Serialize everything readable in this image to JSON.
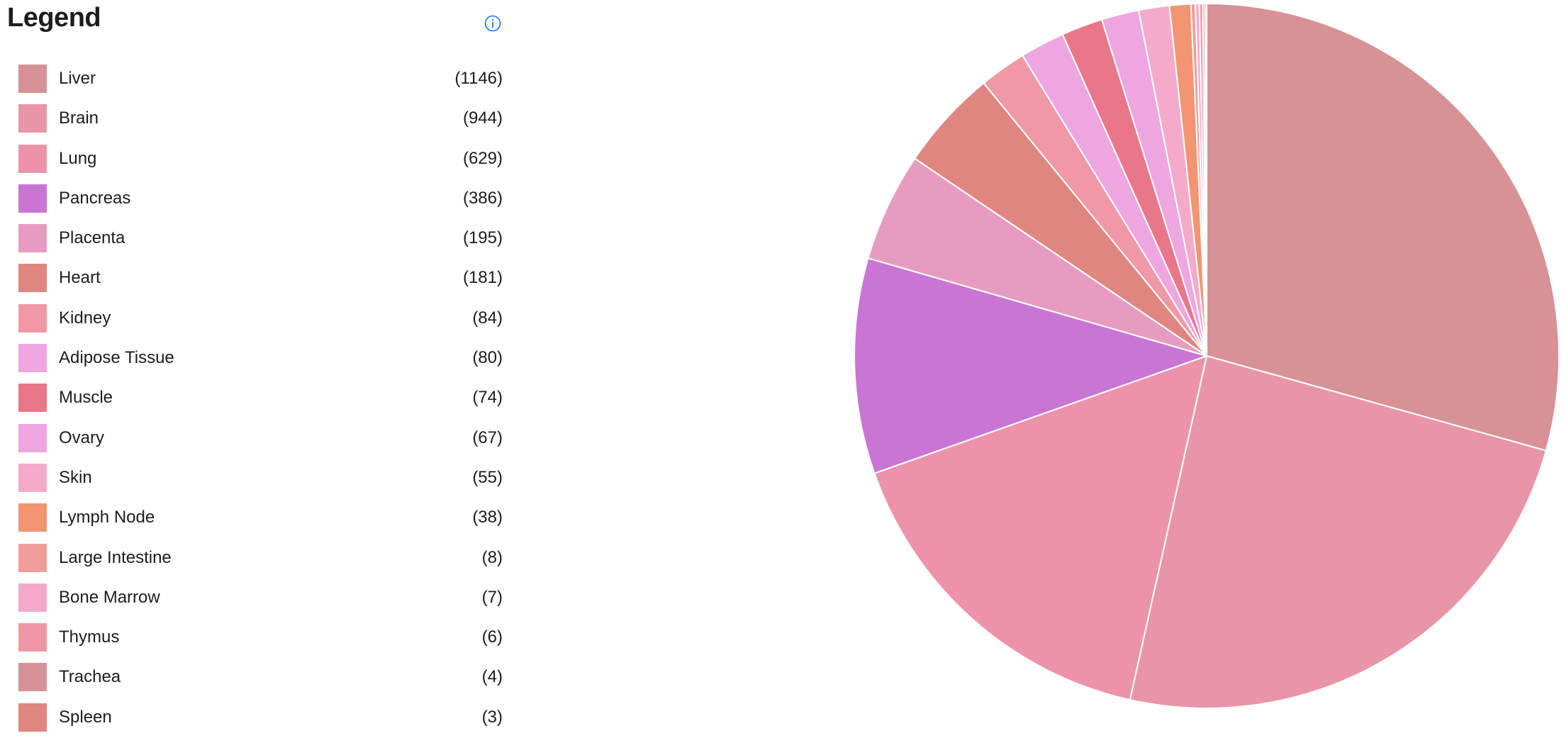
{
  "legend": {
    "title": "Legend",
    "info_icon": "info-circle-icon",
    "info_color": "#1a73e8"
  },
  "chart_data": {
    "type": "pie",
    "start": "top, clockwise",
    "slices": [
      {
        "label": "Liver",
        "value": 1146,
        "count_text": "(1146)",
        "color": "#d69296"
      },
      {
        "label": "Brain",
        "value": 944,
        "count_text": "(944)",
        "color": "#e895a8"
      },
      {
        "label": "Lung",
        "value": 629,
        "count_text": "(629)",
        "color": "#ec93ab"
      },
      {
        "label": "Pancreas",
        "value": 386,
        "count_text": "(386)",
        "color": "#c975d4"
      },
      {
        "label": "Placenta",
        "value": 195,
        "count_text": "(195)",
        "color": "#e69cc0"
      },
      {
        "label": "Heart",
        "value": 181,
        "count_text": "(181)",
        "color": "#e08680"
      },
      {
        "label": "Kidney",
        "value": 84,
        "count_text": "(84)",
        "color": "#f098a5"
      },
      {
        "label": "Adipose Tissue",
        "value": 80,
        "count_text": "(80)",
        "color": "#eda6e0"
      },
      {
        "label": "Muscle",
        "value": 74,
        "count_text": "(74)",
        "color": "#ea7789"
      },
      {
        "label": "Ovary",
        "value": 67,
        "count_text": "(67)",
        "color": "#eda6e0"
      },
      {
        "label": "Skin",
        "value": 55,
        "count_text": "(55)",
        "color": "#f3abc9"
      },
      {
        "label": "Lymph Node",
        "value": 38,
        "count_text": "(38)",
        "color": "#f19572"
      },
      {
        "label": "Large Intestine",
        "value": 8,
        "count_text": "(8)",
        "color": "#f09d9c"
      },
      {
        "label": "Bone Marrow",
        "value": 7,
        "count_text": "(7)",
        "color": "#f3aac9"
      },
      {
        "label": "Thymus",
        "value": 6,
        "count_text": "(6)",
        "color": "#ef97a5"
      },
      {
        "label": "Trachea",
        "value": 4,
        "count_text": "(4)",
        "color": "#d69296"
      },
      {
        "label": "Spleen",
        "value": 3,
        "count_text": "(3)",
        "color": "#e08680"
      }
    ]
  }
}
